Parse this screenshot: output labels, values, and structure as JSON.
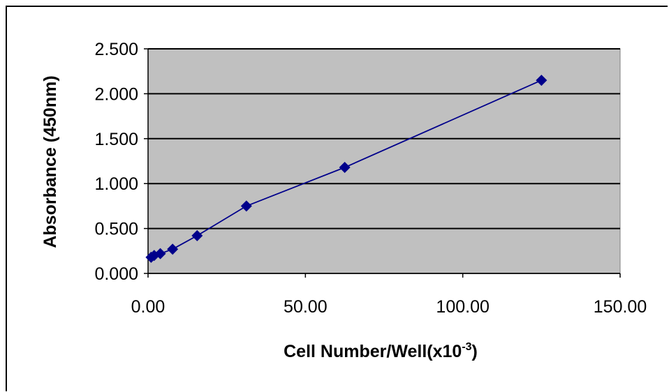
{
  "chart_data": {
    "type": "scatter",
    "title": "",
    "xlabel": "Cell Number/Well(x10",
    "xlabel_sup": "-3",
    "xlabel_end": ")",
    "ylabel": "Absorbance (450nm)",
    "xlim": [
      0,
      150
    ],
    "ylim": [
      0,
      2.5
    ],
    "x_ticks": [
      "0.00",
      "50.00",
      "100.00",
      "150.00"
    ],
    "y_ticks": [
      "0.000",
      "0.500",
      "1.000",
      "1.500",
      "2.000",
      "2.500"
    ],
    "x_tick_values": [
      0,
      50,
      100,
      150
    ],
    "y_tick_values": [
      0,
      0.5,
      1.0,
      1.5,
      2.0,
      2.5
    ],
    "grid": true,
    "legend": "none",
    "series": [
      {
        "x": [
          0.98,
          1.95,
          3.9,
          7.8,
          15.6,
          31.25,
          62.5,
          125
        ],
        "y": [
          0.18,
          0.2,
          0.22,
          0.27,
          0.42,
          0.75,
          1.18,
          2.15
        ],
        "color": "#00008b",
        "marker": "diamond",
        "connected": true
      }
    ],
    "plot_area_color": "#c0c0c0",
    "gridline_color": "#000000"
  }
}
